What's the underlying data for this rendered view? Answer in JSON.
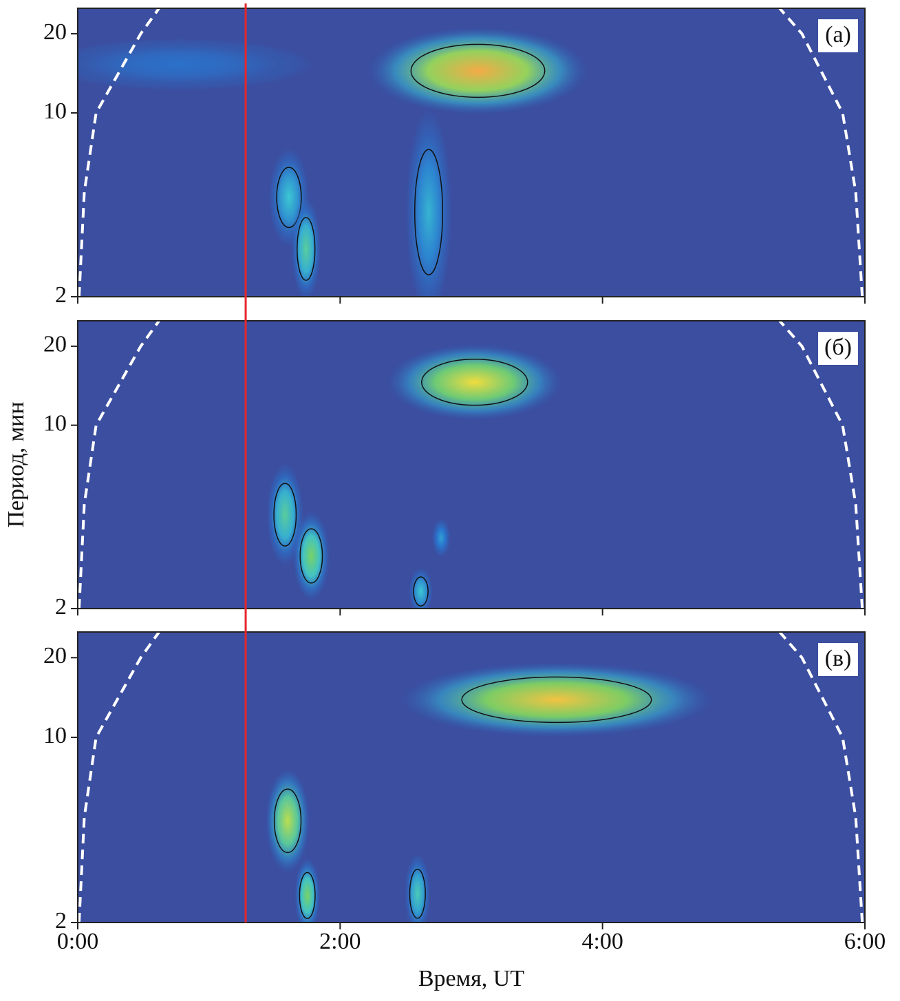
{
  "chart_data": [
    {
      "type": "heatmap",
      "label": "(а)",
      "xlim": [
        0,
        6
      ],
      "ylim": [
        2,
        25
      ],
      "log_y": true,
      "xticks": [
        {
          "value": 0,
          "label": "0:00"
        },
        {
          "value": 2,
          "label": "2:00"
        },
        {
          "value": 4,
          "label": "4:00"
        },
        {
          "value": 6,
          "label": "6:00"
        }
      ],
      "yticks": [
        2,
        10,
        20
      ],
      "vline": 1.28,
      "vline_color": "#e8262b",
      "coi": {
        "left_x": [
          0.01,
          0.05,
          0.14,
          0.48,
          0.62
        ],
        "right_x": [
          5.98,
          5.93,
          5.83,
          5.52,
          5.35
        ],
        "period": [
          2,
          5,
          10,
          20,
          25
        ]
      },
      "spots": [
        {
          "x": [
            0.05,
            1.5
          ],
          "period": [
            13,
            18
          ],
          "intensity": 0.25
        },
        {
          "x": [
            2.45,
            3.65
          ],
          "period": [
            11,
            19
          ],
          "intensity": 1
        },
        {
          "x": [
            1.5,
            1.72
          ],
          "period": [
            3.5,
            6.5
          ],
          "intensity": 0.5
        },
        {
          "x": [
            1.66,
            1.82
          ],
          "period": [
            2.2,
            4.2
          ],
          "intensity": 0.6
        },
        {
          "x": [
            2.55,
            2.8
          ],
          "period": [
            2.2,
            8
          ],
          "intensity": 0.45
        }
      ]
    },
    {
      "type": "heatmap",
      "label": "(б)",
      "xlim": [
        0,
        6
      ],
      "ylim": [
        2,
        25
      ],
      "log_y": true,
      "y_label": "Период, мин",
      "xticks": [
        {
          "value": 0,
          "label": "0:00"
        },
        {
          "value": 2,
          "label": "2:00"
        },
        {
          "value": 4,
          "label": "4:00"
        },
        {
          "value": 6,
          "label": "6:00"
        }
      ],
      "yticks": [
        2,
        10,
        20
      ],
      "vline": 1.28,
      "vline_color": "#e8262b",
      "coi": {
        "left_x": [
          0.01,
          0.05,
          0.14,
          0.48,
          0.62
        ],
        "right_x": [
          5.98,
          5.93,
          5.83,
          5.52,
          5.35
        ],
        "period": [
          2,
          5,
          10,
          20,
          25
        ]
      },
      "spots": [
        {
          "x": [
            2.55,
            3.5
          ],
          "period": [
            11.5,
            18.5
          ],
          "intensity": 0.9
        },
        {
          "x": [
            1.48,
            1.68
          ],
          "period": [
            3.3,
            6.3
          ],
          "intensity": 0.6
        },
        {
          "x": [
            1.68,
            1.88
          ],
          "period": [
            2.4,
            4.2
          ],
          "intensity": 0.7
        },
        {
          "x": [
            2.55,
            2.68
          ],
          "period": [
            2,
            2.7
          ],
          "intensity": 0.5
        },
        {
          "x": [
            2.72,
            2.82
          ],
          "period": [
            3.3,
            4.2
          ],
          "intensity": 0.4
        }
      ]
    },
    {
      "type": "heatmap",
      "label": "(в)",
      "xlim": [
        0,
        6
      ],
      "ylim": [
        2,
        25
      ],
      "log_y": true,
      "x_label": "Время, UT",
      "xticks": [
        {
          "value": 0,
          "label": "0:00"
        },
        {
          "value": 2,
          "label": "2:00"
        },
        {
          "value": 4,
          "label": "4:00"
        },
        {
          "value": 6,
          "label": "6:00"
        }
      ],
      "yticks": [
        2,
        10,
        20
      ],
      "vline": 1.28,
      "vline_color": "#e8262b",
      "coi": {
        "left_x": [
          0.01,
          0.05,
          0.14,
          0.48,
          0.62
        ],
        "right_x": [
          5.98,
          5.93,
          5.83,
          5.52,
          5.35
        ],
        "period": [
          2,
          5,
          10,
          20,
          25
        ]
      },
      "spots": [
        {
          "x": [
            2.8,
            4.5
          ],
          "period": [
            11,
            17.5
          ],
          "intensity": 0.95
        },
        {
          "x": [
            1.48,
            1.72
          ],
          "period": [
            3.5,
            6.7
          ],
          "intensity": 0.8
        },
        {
          "x": [
            1.68,
            1.82
          ],
          "period": [
            2,
            3.2
          ],
          "intensity": 0.7
        },
        {
          "x": [
            2.52,
            2.66
          ],
          "period": [
            2,
            3.3
          ],
          "intensity": 0.55
        }
      ]
    }
  ]
}
